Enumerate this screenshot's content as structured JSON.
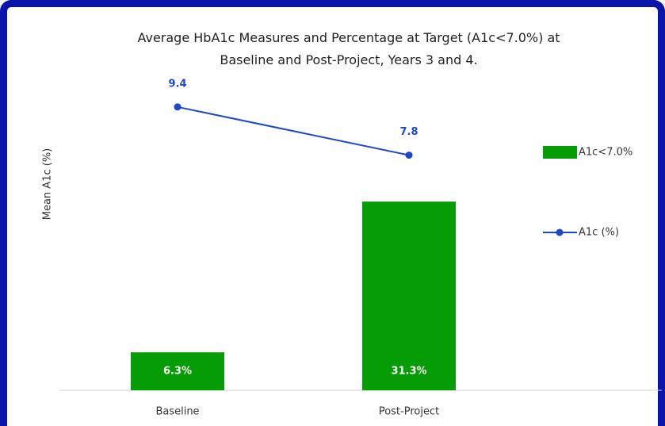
{
  "chart_data": {
    "type": "bar-line",
    "title": "Average HbA1c Measures and Percentage at Target (A1c<7.0%) at\nBaseline and Post-Project, Years 3 and 4.",
    "ylabel": "Mean A1c (%)",
    "categories": [
      "Baseline",
      "Post-Project"
    ],
    "series": [
      {
        "name": "A1c<7.0%",
        "type": "bar",
        "axis": "y2",
        "color": "#069c06",
        "values": [
          6.3,
          31.3
        ],
        "value_labels": [
          "6.3%",
          "31.3%"
        ]
      },
      {
        "name": "A1c (%)",
        "type": "line",
        "color": "#1f48c8",
        "values": [
          9.4,
          7.8
        ]
      }
    ],
    "ylim": [
      0,
      10
    ],
    "y2lim": [
      0,
      50
    ],
    "legend": "right"
  }
}
